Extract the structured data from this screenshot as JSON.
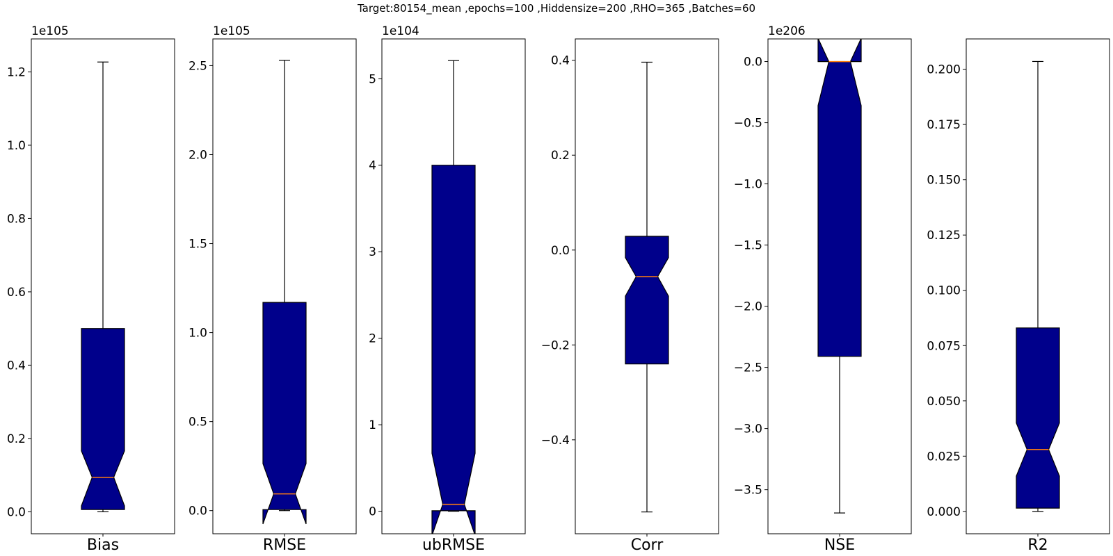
{
  "title": "Target:80154_mean ,epochs=100 ,Hiddensize=200 ,RHO=365 ,Batches=60",
  "colors": {
    "box_fill": "#00008b",
    "median": "#ff7f0e",
    "line": "#000000"
  },
  "chart_data": [
    {
      "type": "boxplot",
      "label": "Bias",
      "multiplier": "1e105",
      "ylim": [
        -0.06,
        1.29
      ],
      "ticks": [
        0.0,
        0.2,
        0.4,
        0.6,
        0.8,
        1.0,
        1.2
      ],
      "tick_labels": [
        "0.0",
        "0.2",
        "0.4",
        "0.6",
        "0.8",
        "1.0",
        "1.2"
      ],
      "whisker_low": 0.0,
      "q1": 0.006,
      "notch_low": 0.016,
      "median": 0.094,
      "notch_high": 0.166,
      "q3": 0.5,
      "whisker_high": 1.227
    },
    {
      "type": "boxplot",
      "label": "RMSE",
      "multiplier": "1e105",
      "ylim": [
        -0.13,
        2.65
      ],
      "ticks": [
        0.0,
        0.5,
        1.0,
        1.5,
        2.0,
        2.5
      ],
      "tick_labels": [
        "0.0",
        "0.5",
        "1.0",
        "1.5",
        "2.0",
        "2.5"
      ],
      "whisker_low": 0.0,
      "q1": 0.006,
      "notch_low": -0.075,
      "median": 0.094,
      "notch_high": 0.264,
      "q3": 1.17,
      "whisker_high": 2.53
    },
    {
      "type": "boxplot",
      "label": "ubRMSE",
      "multiplier": "1e104",
      "ylim": [
        -0.26,
        5.46
      ],
      "ticks": [
        0,
        1,
        2,
        3,
        4,
        5
      ],
      "tick_labels": [
        "0",
        "1",
        "2",
        "3",
        "4",
        "5"
      ],
      "whisker_low": 0.0,
      "q1": 0.006,
      "notch_low": -0.28,
      "median": 0.08,
      "notch_high": 0.67,
      "q3": 4.0,
      "whisker_high": 5.21
    },
    {
      "type": "boxplot",
      "label": "Corr",
      "multiplier": "",
      "ylim": [
        -0.598,
        0.445
      ],
      "ticks": [
        -0.4,
        -0.2,
        0.0,
        0.2,
        0.4
      ],
      "tick_labels": [
        "−0.4",
        "−0.2",
        "0.0",
        "0.2",
        "0.4"
      ],
      "whisker_low": -0.552,
      "q1": -0.24,
      "notch_low": -0.097,
      "median": -0.056,
      "notch_high": -0.016,
      "q3": 0.029,
      "whisker_high": 0.396
    },
    {
      "type": "boxplot",
      "label": "NSE",
      "multiplier": "1e206",
      "ylim": [
        -3.86,
        0.185
      ],
      "ticks": [
        0.0,
        -0.5,
        -1.0,
        -1.5,
        -2.0,
        -2.5,
        -3.0,
        -3.5
      ],
      "tick_labels": [
        "0.0",
        "−0.5",
        "−1.0",
        "−1.5",
        "−2.0",
        "−2.5",
        "−3.0",
        "−3.5"
      ],
      "whisker_low": -3.69,
      "q1": -2.41,
      "notch_low": -0.36,
      "median": 0.0,
      "notch_high": 0.19,
      "q3": 0.0,
      "whisker_high": 0.0
    },
    {
      "type": "boxplot",
      "label": "R2",
      "multiplier": "",
      "ylim": [
        -0.0101,
        0.2137
      ],
      "ticks": [
        0.0,
        0.025,
        0.05,
        0.075,
        0.1,
        0.125,
        0.15,
        0.175,
        0.2
      ],
      "tick_labels": [
        "0.000",
        "0.025",
        "0.050",
        "0.075",
        "0.100",
        "0.125",
        "0.150",
        "0.175",
        "0.200"
      ],
      "whisker_low": 0.0,
      "q1": 0.0015,
      "notch_low": 0.016,
      "median": 0.028,
      "notch_high": 0.04,
      "q3": 0.083,
      "whisker_high": 0.2035
    }
  ]
}
